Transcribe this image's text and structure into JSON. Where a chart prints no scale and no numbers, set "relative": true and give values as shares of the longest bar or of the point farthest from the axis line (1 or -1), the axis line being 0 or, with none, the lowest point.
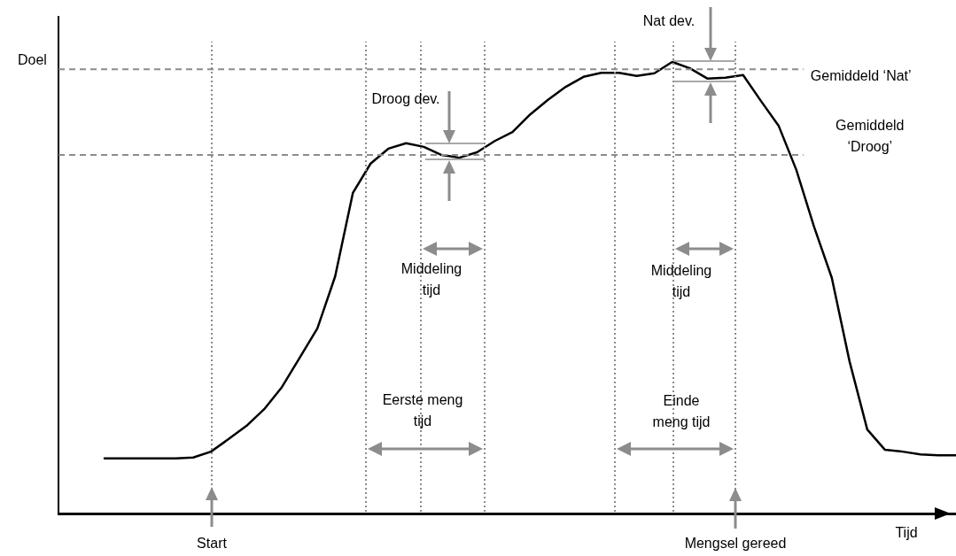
{
  "chart_data": {
    "type": "line",
    "relative": true,
    "grid": "x",
    "xlabel": "Tijd",
    "ylabel": "Doel",
    "categories": [
      null,
      null,
      null,
      null,
      null,
      null,
      null,
      null,
      null,
      null,
      null,
      null,
      null,
      null,
      null,
      null,
      null,
      null,
      null,
      null,
      null,
      null,
      null,
      null,
      null,
      null,
      null,
      null,
      null,
      null,
      null,
      null,
      null,
      null,
      null,
      null,
      null,
      null,
      null,
      null,
      null,
      null,
      null,
      null,
      null,
      null,
      null,
      null,
      null
    ],
    "series": [
      {
        "color": "#000000",
        "values": [
          0.122,
          0.122,
          0.122,
          0.122,
          0.122,
          0.124,
          0.137,
          0.165,
          0.194,
          0.231,
          0.28,
          0.345,
          0.41,
          0.525,
          0.71,
          0.775,
          0.808,
          0.82,
          0.812,
          0.794,
          0.788,
          0.8,
          0.825,
          0.845,
          0.884,
          0.916,
          0.945,
          0.967,
          0.976,
          0.976,
          0.969,
          0.975,
          1,
          0.986,
          0.963,
          0.965,
          0.971,
          0.914,
          0.859,
          0.761,
          0.635,
          0.522,
          0.337,
          0.186,
          0.141,
          0.137,
          0.131,
          0.129,
          0.129
        ]
      }
    ],
    "ref_lines": [
      {
        "axis": "y",
        "value": 0.984,
        "label": "Gemiddeld ‘Nat’",
        "color": "#8c8c8c",
        "line_style": "dashed"
      },
      {
        "axis": "y",
        "value": 0.794,
        "label": "Gemiddeld\n‘Droog’",
        "color": "#8c8c8c",
        "line_style": "dashed"
      }
    ],
    "annotations": [
      "Droog dev.",
      "Nat dev.",
      "Middeling\ntijd",
      "Middeling\ntijd",
      "Eerste meng\ntijd",
      "Einde\nmeng tijd",
      "Start",
      "Mengsel gereed"
    ]
  }
}
